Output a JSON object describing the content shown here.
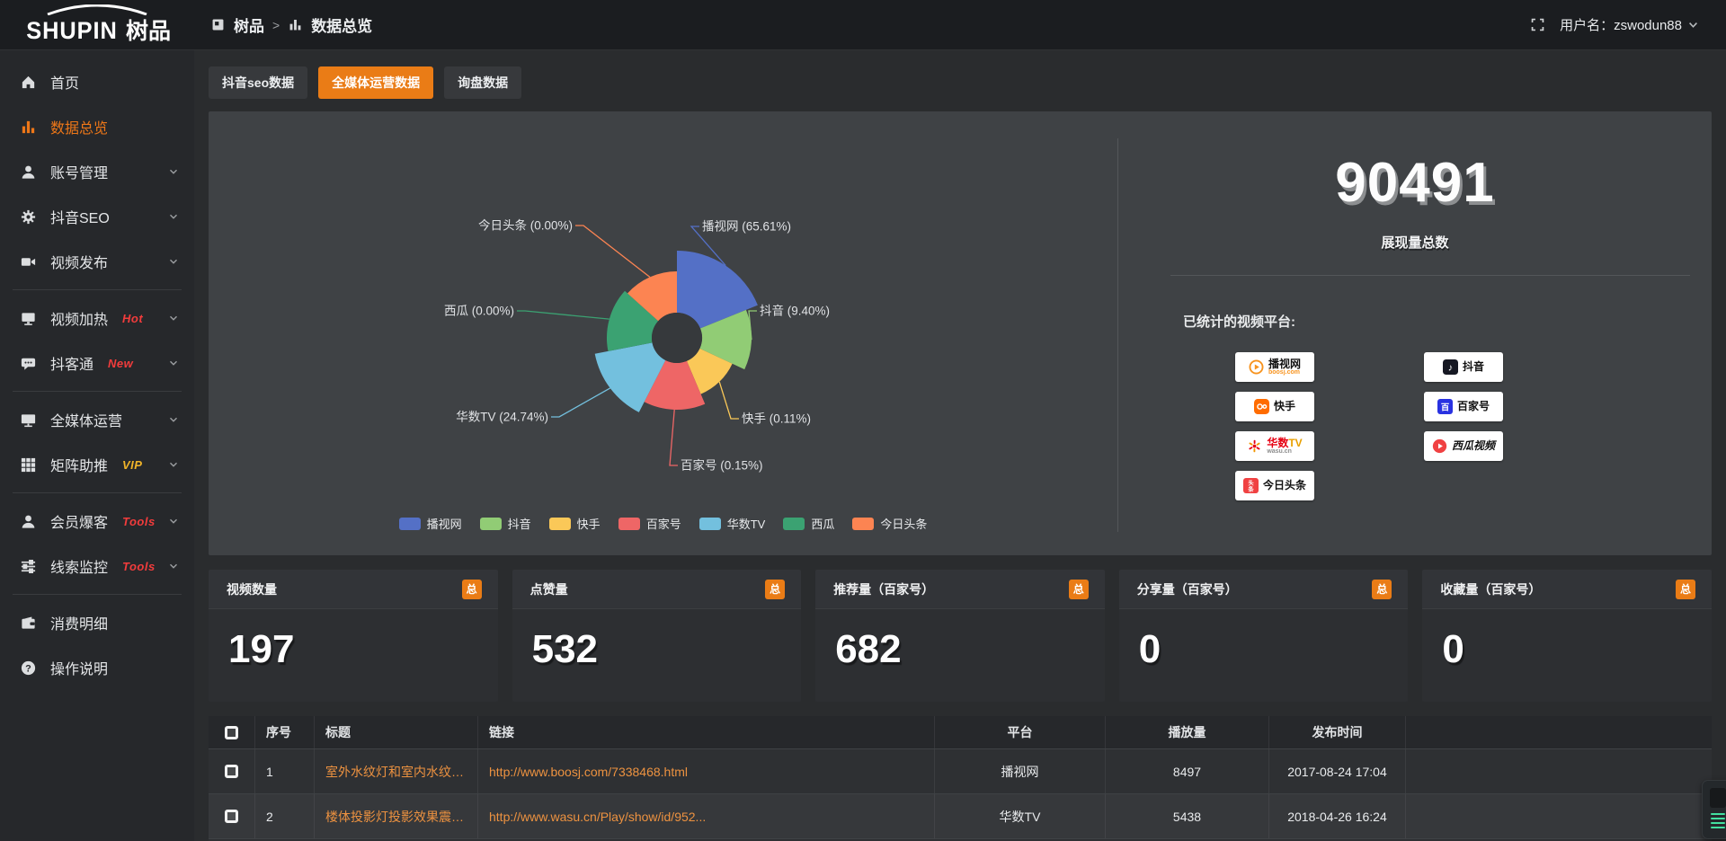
{
  "app": {
    "brand_en": "SHUPIN",
    "brand_cn": "树品"
  },
  "topbar": {
    "breadcrumb": [
      {
        "label": "树品",
        "icon": "board-icon"
      },
      {
        "label": "数据总览",
        "icon": "bar-chart-icon"
      }
    ],
    "separator": ">",
    "user_label": "用户名：zswodun88"
  },
  "sidebar": {
    "items": [
      {
        "label": "首页",
        "icon": "home"
      },
      {
        "label": "数据总览",
        "icon": "chart-bar",
        "active": true
      },
      {
        "label": "账号管理",
        "icon": "user",
        "chevron": true
      },
      {
        "label": "抖音SEO",
        "icon": "gear",
        "chevron": true
      },
      {
        "label": "视频发布",
        "icon": "video",
        "chevron": true,
        "divider_after": true
      },
      {
        "label": "视频加热",
        "icon": "screen",
        "badge": "Hot",
        "badge_color": "red",
        "chevron": true
      },
      {
        "label": "抖客通",
        "icon": "chat",
        "badge": "New",
        "badge_color": "red",
        "chevron": true,
        "divider_after": true
      },
      {
        "label": "全媒体运营",
        "icon": "monitor",
        "chevron": true
      },
      {
        "label": "矩阵助推",
        "icon": "grid",
        "badge": "VIP",
        "badge_color": "gold",
        "chevron": true,
        "divider_after": true
      },
      {
        "label": "会员爆客",
        "icon": "user-star",
        "badge": "Tools",
        "badge_color": "red",
        "chevron": true
      },
      {
        "label": "线索监控",
        "icon": "sliders",
        "badge": "Tools",
        "badge_color": "red",
        "chevron": true,
        "divider_after": true
      },
      {
        "label": "消费明细",
        "icon": "wallet"
      },
      {
        "label": "操作说明",
        "icon": "question"
      }
    ]
  },
  "tabs": [
    {
      "label": "抖音seo数据",
      "active": false
    },
    {
      "label": "全媒体运营数据",
      "active": true
    },
    {
      "label": "询盘数据",
      "active": false
    }
  ],
  "chart_data": {
    "type": "pie",
    "style": "rose",
    "legend_position": "bottom",
    "series": [
      {
        "name": "播视网",
        "percent": 65.61,
        "pct_label": "65.61"
      },
      {
        "name": "抖音",
        "percent": 9.4,
        "pct_label": "9.40"
      },
      {
        "name": "快手",
        "percent": 0.11,
        "pct_label": "0.11"
      },
      {
        "name": "百家号",
        "percent": 0.15,
        "pct_label": "0.15"
      },
      {
        "name": "华数TV",
        "percent": 24.74,
        "pct_label": "24.74"
      },
      {
        "name": "西瓜",
        "percent": 0.0,
        "pct_label": "0.00"
      },
      {
        "name": "今日头条",
        "percent": 0.0,
        "pct_label": "0.00"
      }
    ],
    "colors": [
      "#5470c6",
      "#91cc75",
      "#fac858",
      "#ee6666",
      "#73c0de",
      "#3ba272",
      "#fc8452"
    ],
    "display_angles": [
      68,
      47,
      42,
      50,
      52,
      53,
      48
    ],
    "display_radii": [
      97,
      83,
      68,
      80,
      93,
      78,
      74
    ],
    "hole_radius": 28,
    "label_format": "{name} ({pct}%)"
  },
  "summary": {
    "total_value": "90491",
    "total_label": "展现量总数",
    "platforms_label": "已统计的视频平台:",
    "platforms": [
      {
        "name": "播视网",
        "sub": "boosj.com",
        "type": "boosj"
      },
      {
        "name": "抖音",
        "type": "douyin"
      },
      {
        "name": "快手",
        "type": "kuaishou"
      },
      {
        "name": "百家号",
        "type": "baijiahao"
      },
      {
        "name": "华数TV",
        "sub": "wasu.cn",
        "type": "wasu"
      },
      {
        "name": "西瓜视频",
        "type": "xigua"
      },
      {
        "name": "今日头条",
        "type": "toutiao"
      }
    ]
  },
  "stat_cards": [
    {
      "title": "视频数量",
      "badge": "总",
      "value": "197"
    },
    {
      "title": "点赞量",
      "badge": "总",
      "value": "532"
    },
    {
      "title": "推荐量（百家号）",
      "badge": "总",
      "value": "682"
    },
    {
      "title": "分享量（百家号）",
      "badge": "总",
      "value": "0"
    },
    {
      "title": "收藏量（百家号）",
      "badge": "总",
      "value": "0"
    }
  ],
  "table": {
    "headers": {
      "index": "序号",
      "title": "标题",
      "link": "链接",
      "platform": "平台",
      "plays": "播放量",
      "published": "发布时间"
    },
    "rows": [
      {
        "index": "1",
        "title": "室外水纹灯和室内水纹灯的区别和简介",
        "link": "http://www.boosj.com/7338468.html",
        "platform": "播视网",
        "plays": "8497",
        "published": "2017-08-24 17:04"
      },
      {
        "index": "2",
        "title": "楼体投影灯投影效果震撼上市",
        "link": "http://www.wasu.cn/Play/show/id/952...",
        "platform": "华数TV",
        "plays": "5438",
        "published": "2018-04-26 16:24"
      }
    ]
  },
  "colors": {
    "accent": "#ea7c16",
    "link": "#ed9240",
    "badge_red": "#f23c3c",
    "badge_gold": "#f0b429"
  }
}
